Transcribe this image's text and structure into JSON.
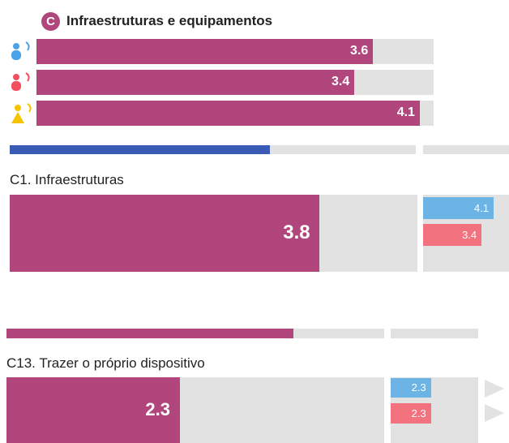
{
  "section": {
    "badge": "C",
    "title": "Infraestruturas e equipamentos",
    "groups": [
      {
        "value": 3.6
      },
      {
        "value": 3.4
      },
      {
        "value": 4.1
      }
    ]
  },
  "items": [
    {
      "title": "C1. Infraestruturas",
      "value": 3.8,
      "compare": [
        4.1,
        3.4
      ]
    },
    {
      "title": "C13. Trazer o próprio dispositivo",
      "value": 2.3,
      "compare": [
        2.3,
        2.3
      ]
    }
  ]
}
